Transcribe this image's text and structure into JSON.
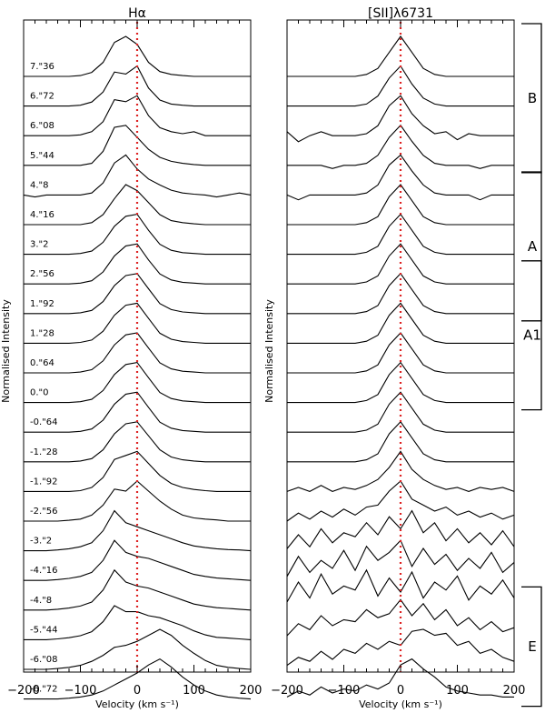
{
  "chart_data": [
    {
      "type": "line",
      "title": "Hα",
      "xlabel": "Velocity (km s⁻¹)",
      "ylabel": "Normalised Intensity",
      "xlim": [
        -200,
        200
      ],
      "x_ticks": [
        "−200",
        "−100",
        "0",
        "100",
        "200"
      ],
      "reference_line": {
        "x": 0,
        "style": "dotted",
        "color": "#dd2222"
      },
      "offsets": [
        "7.\"36",
        "6.\"72",
        "6.\"08",
        "5.\"44",
        "4.\"8",
        "4.\"16",
        "3.\"2",
        "2.\"56",
        "1.\"92",
        "1.\"28",
        "0.\"64",
        "0.\"0",
        "-0.\"64",
        "-1.\"28",
        "-1.\"92",
        "-2.\"56",
        "-3.\"2",
        "-4.\"16",
        "-4.\"8",
        "-5.\"44",
        "-6.\"08",
        "-6.\"72"
      ],
      "x": [
        -200,
        -180,
        -160,
        -140,
        -120,
        -100,
        -80,
        -60,
        -40,
        -20,
        0,
        20,
        40,
        60,
        80,
        100,
        120,
        140,
        160,
        180,
        200
      ],
      "series": [
        [
          0,
          0,
          0,
          0,
          0,
          0.02,
          0.1,
          0.35,
          0.85,
          1.0,
          0.8,
          0.35,
          0.12,
          0.05,
          0.02,
          0,
          0,
          0,
          0,
          0,
          0
        ],
        [
          0,
          0,
          0,
          0,
          0,
          0.02,
          0.1,
          0.35,
          0.85,
          0.8,
          1.0,
          0.45,
          0.15,
          0.05,
          0.02,
          0,
          0,
          0,
          0,
          0,
          0
        ],
        [
          0,
          0,
          0,
          0,
          0,
          0.02,
          0.1,
          0.35,
          0.9,
          0.85,
          1.0,
          0.5,
          0.2,
          0.1,
          0.05,
          0.1,
          0,
          0,
          0,
          0,
          0
        ],
        [
          0,
          0,
          0,
          0,
          0,
          0,
          0.05,
          0.35,
          0.95,
          1.0,
          0.7,
          0.4,
          0.2,
          0.1,
          0.05,
          0.02,
          0,
          0,
          0,
          0,
          0
        ],
        [
          0,
          -0.05,
          0,
          0,
          0,
          0,
          0.05,
          0.3,
          0.8,
          1.0,
          0.65,
          0.4,
          0.25,
          0.12,
          0.05,
          0.02,
          0,
          -0.05,
          0,
          0.05,
          0
        ],
        [
          0,
          0,
          0,
          0,
          0,
          0,
          0.05,
          0.25,
          0.65,
          1.0,
          0.85,
          0.55,
          0.25,
          0.1,
          0.05,
          0.02,
          0,
          0,
          0,
          0,
          0
        ],
        [
          0,
          0,
          0,
          0,
          0,
          0.02,
          0.08,
          0.3,
          0.7,
          0.95,
          1.0,
          0.6,
          0.25,
          0.1,
          0.04,
          0.02,
          0,
          0,
          0,
          0,
          0
        ],
        [
          0,
          0,
          0,
          0,
          0,
          0.02,
          0.08,
          0.3,
          0.7,
          0.95,
          1.0,
          0.6,
          0.25,
          0.1,
          0.04,
          0.02,
          0,
          0,
          0,
          0,
          0
        ],
        [
          0,
          0,
          0,
          0,
          0,
          0.02,
          0.08,
          0.3,
          0.7,
          0.95,
          1.0,
          0.62,
          0.25,
          0.1,
          0.04,
          0.02,
          0,
          0,
          0,
          0,
          0
        ],
        [
          0,
          0,
          0,
          0,
          0,
          0.02,
          0.08,
          0.3,
          0.7,
          0.95,
          1.0,
          0.62,
          0.25,
          0.1,
          0.04,
          0.02,
          0,
          0,
          0,
          0,
          0
        ],
        [
          0,
          0,
          0,
          0,
          0,
          0.02,
          0.08,
          0.3,
          0.7,
          0.95,
          1.0,
          0.62,
          0.25,
          0.1,
          0.04,
          0.02,
          0,
          0,
          0,
          0,
          0
        ],
        [
          0,
          0,
          0,
          0,
          0,
          0.02,
          0.08,
          0.3,
          0.7,
          0.95,
          1.0,
          0.62,
          0.25,
          0.1,
          0.04,
          0.02,
          0,
          0,
          0,
          0,
          0
        ],
        [
          0,
          0,
          0,
          0,
          0,
          0.02,
          0.08,
          0.3,
          0.7,
          0.95,
          1.0,
          0.62,
          0.25,
          0.1,
          0.04,
          0.02,
          0,
          0,
          0,
          0,
          0
        ],
        [
          0,
          0,
          0,
          0,
          0,
          0.02,
          0.08,
          0.3,
          0.7,
          0.95,
          1.0,
          0.65,
          0.3,
          0.12,
          0.05,
          0.02,
          0,
          0,
          0,
          0,
          0
        ],
        [
          0,
          0,
          0,
          0,
          0,
          0.02,
          0.1,
          0.35,
          0.8,
          0.9,
          1.0,
          0.7,
          0.4,
          0.2,
          0.1,
          0.05,
          0.02,
          0,
          0,
          0,
          0
        ],
        [
          0,
          0,
          0,
          0,
          0.02,
          0.05,
          0.15,
          0.4,
          0.8,
          0.75,
          1.0,
          0.75,
          0.5,
          0.3,
          0.15,
          0.08,
          0.05,
          0.03,
          0,
          0,
          0
        ],
        [
          0,
          0,
          0,
          0.02,
          0.05,
          0.1,
          0.2,
          0.5,
          1.0,
          0.7,
          0.6,
          0.5,
          0.4,
          0.3,
          0.2,
          0.12,
          0.08,
          0.05,
          0.03,
          0.02,
          0
        ],
        [
          0,
          0,
          0,
          0.02,
          0.05,
          0.1,
          0.2,
          0.5,
          1.0,
          0.7,
          0.6,
          0.55,
          0.45,
          0.35,
          0.25,
          0.15,
          0.1,
          0.06,
          0.04,
          0.02,
          0
        ],
        [
          0,
          0,
          0,
          0.02,
          0.05,
          0.1,
          0.2,
          0.5,
          1.0,
          0.7,
          0.6,
          0.55,
          0.45,
          0.35,
          0.25,
          0.15,
          0.1,
          0.06,
          0.04,
          0.02,
          0
        ],
        [
          0,
          0,
          0,
          0.02,
          0.05,
          0.1,
          0.2,
          0.45,
          0.85,
          0.7,
          0.7,
          0.6,
          0.55,
          0.45,
          0.35,
          0.22,
          0.12,
          0.06,
          0.04,
          0.02,
          0
        ],
        [
          0,
          0,
          0,
          0.02,
          0.05,
          0.1,
          0.2,
          0.35,
          0.55,
          0.6,
          0.7,
          0.85,
          1.0,
          0.85,
          0.6,
          0.4,
          0.22,
          0.1,
          0.05,
          0.02,
          0
        ],
        [
          0,
          0,
          0,
          0,
          0.02,
          0.05,
          0.1,
          0.2,
          0.35,
          0.5,
          0.65,
          0.85,
          1.0,
          0.8,
          0.55,
          0.35,
          0.2,
          0.1,
          0.05,
          0.02,
          0
        ]
      ]
    },
    {
      "type": "line",
      "title": "[SII]λ6731",
      "xlabel": "Velocity (km s⁻¹)",
      "ylabel": "Normalised Intensity",
      "xlim": [
        -200,
        200
      ],
      "x_ticks": [
        "−200",
        "−100",
        "0",
        "100",
        "200"
      ],
      "reference_line": {
        "x": 0,
        "style": "dotted",
        "color": "#dd2222"
      },
      "x": [
        -200,
        -180,
        -160,
        -140,
        -120,
        -100,
        -80,
        -60,
        -40,
        -20,
        0,
        20,
        40,
        60,
        80,
        100,
        120,
        140,
        160,
        180,
        200
      ],
      "series": [
        [
          0,
          0,
          0,
          0,
          0,
          0,
          0,
          0.05,
          0.2,
          0.6,
          1.0,
          0.6,
          0.2,
          0.05,
          0,
          0,
          0,
          0,
          0,
          0,
          0
        ],
        [
          0,
          0,
          0,
          0,
          0,
          0,
          0,
          0.05,
          0.25,
          0.7,
          1.0,
          0.55,
          0.2,
          0.05,
          0,
          0,
          0,
          0,
          0,
          0,
          0
        ],
        [
          0.1,
          -0.15,
          0,
          0.1,
          0,
          0,
          0,
          0.05,
          0.25,
          0.75,
          1.0,
          0.55,
          0.25,
          0.05,
          0.1,
          -0.1,
          0.05,
          0,
          0,
          0,
          0
        ],
        [
          0,
          0,
          0,
          0,
          -0.08,
          0,
          0,
          0.05,
          0.25,
          0.7,
          1.0,
          0.6,
          0.25,
          0.05,
          0,
          0,
          0,
          -0.08,
          0,
          0,
          0
        ],
        [
          0,
          -0.12,
          0,
          0,
          0,
          0,
          0,
          0.05,
          0.25,
          0.75,
          1.0,
          0.6,
          0.25,
          0.05,
          0,
          0,
          0,
          -0.12,
          0,
          0,
          0
        ],
        [
          0,
          0,
          0,
          0,
          0,
          0,
          0,
          0.05,
          0.2,
          0.7,
          1.0,
          0.6,
          0.2,
          0.05,
          0,
          0,
          0,
          0,
          0,
          0,
          0
        ],
        [
          0,
          0,
          0,
          0,
          0,
          0,
          0,
          0.05,
          0.2,
          0.7,
          1.0,
          0.6,
          0.2,
          0.05,
          0,
          0,
          0,
          0,
          0,
          0,
          0
        ],
        [
          0,
          0,
          0,
          0,
          0,
          0,
          0,
          0.05,
          0.2,
          0.7,
          1.0,
          0.6,
          0.2,
          0.05,
          0,
          0,
          0,
          0,
          0,
          0,
          0
        ],
        [
          0,
          0,
          0,
          0,
          0,
          0,
          0,
          0.05,
          0.2,
          0.7,
          1.0,
          0.6,
          0.2,
          0.05,
          0,
          0,
          0,
          0,
          0,
          0,
          0
        ],
        [
          0,
          0,
          0,
          0,
          0,
          0,
          0,
          0.05,
          0.2,
          0.7,
          1.0,
          0.6,
          0.2,
          0.05,
          0,
          0,
          0,
          0,
          0,
          0,
          0
        ],
        [
          0,
          0,
          0,
          0,
          0,
          0,
          0,
          0.05,
          0.2,
          0.7,
          1.0,
          0.6,
          0.2,
          0.05,
          0,
          0,
          0,
          0,
          0,
          0,
          0
        ],
        [
          0,
          0,
          0,
          0,
          0,
          0,
          0,
          0.05,
          0.2,
          0.7,
          1.0,
          0.6,
          0.2,
          0.05,
          0,
          0,
          0,
          0,
          0,
          0,
          0
        ],
        [
          0,
          0,
          0,
          0,
          0,
          0,
          0,
          0.05,
          0.2,
          0.7,
          1.0,
          0.6,
          0.2,
          0.05,
          0,
          0,
          0,
          0,
          0,
          0,
          0
        ],
        [
          0,
          0,
          0,
          0,
          0,
          0,
          0,
          0.05,
          0.2,
          0.7,
          1.0,
          0.6,
          0.2,
          0.05,
          0,
          0,
          0,
          0,
          0,
          0,
          0
        ],
        [
          0,
          0.1,
          0,
          0.15,
          0,
          0.1,
          0.05,
          0.15,
          0.3,
          0.6,
          1.0,
          0.55,
          0.3,
          0.15,
          0.05,
          0.1,
          0,
          0.1,
          0.05,
          0.1,
          0
        ],
        [
          0,
          0.2,
          0.05,
          0.25,
          0.1,
          0.3,
          0.15,
          0.35,
          0.4,
          0.75,
          1.0,
          0.55,
          0.4,
          0.25,
          0.35,
          0.15,
          0.25,
          0.1,
          0.2,
          0.05,
          0.15
        ],
        [
          0.05,
          0.4,
          0.1,
          0.55,
          0.2,
          0.45,
          0.35,
          0.7,
          0.4,
          0.85,
          0.55,
          1.0,
          0.45,
          0.7,
          0.25,
          0.55,
          0.2,
          0.45,
          0.15,
          0.5,
          0.1
        ],
        [
          0.1,
          0.6,
          0.2,
          0.5,
          0.3,
          0.75,
          0.25,
          0.85,
          0.5,
          0.7,
          1.0,
          0.35,
          0.8,
          0.4,
          0.65,
          0.25,
          0.55,
          0.3,
          0.7,
          0.2,
          0.45
        ],
        [
          0.2,
          0.7,
          0.3,
          0.9,
          0.4,
          0.6,
          0.5,
          1.0,
          0.35,
          0.8,
          0.45,
          0.95,
          0.3,
          0.7,
          0.5,
          0.85,
          0.25,
          0.6,
          0.4,
          0.75,
          0.3
        ],
        [
          0.1,
          0.4,
          0.25,
          0.6,
          0.35,
          0.5,
          0.45,
          0.75,
          0.55,
          0.65,
          1.0,
          0.6,
          0.9,
          0.5,
          0.75,
          0.35,
          0.55,
          0.25,
          0.45,
          0.2,
          0.3
        ],
        [
          0.1,
          0.3,
          0.2,
          0.45,
          0.25,
          0.5,
          0.4,
          0.65,
          0.5,
          0.7,
          0.6,
          0.95,
          1.0,
          0.85,
          0.9,
          0.6,
          0.7,
          0.4,
          0.5,
          0.3,
          0.2
        ],
        [
          0.05,
          0.2,
          0.1,
          0.3,
          0.15,
          0.25,
          0.2,
          0.35,
          0.25,
          0.4,
          0.85,
          1.0,
          0.75,
          0.55,
          0.3,
          0.2,
          0.15,
          0.1,
          0.1,
          0.05,
          0.05
        ]
      ],
      "brackets": [
        {
          "label": "B",
          "from_row": 0,
          "to_row": 3
        },
        {
          "label": "A",
          "from_row": 5,
          "to_row": 8
        },
        {
          "label": "A1",
          "from_row": 8,
          "to_row": 11
        },
        {
          "label": "E",
          "from_row": 19,
          "to_row": 21
        }
      ]
    }
  ]
}
